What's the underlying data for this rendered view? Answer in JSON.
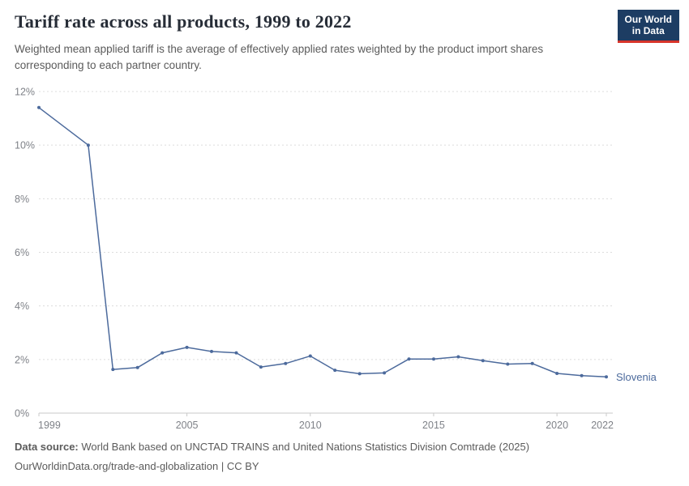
{
  "header": {
    "title": "Tariff rate across all products, 1999 to 2022",
    "subtitle": "Weighted mean applied tariff is the average of effectively applied rates weighted by the product import shares corresponding to each partner country.",
    "logo": {
      "line1": "Our World",
      "line2": "in Data",
      "bg_color": "#1d3d63",
      "accent_color": "#d8352b",
      "text_color": "#ffffff"
    }
  },
  "chart_data": {
    "type": "line",
    "title": "Tariff rate across all products, 1999 to 2022",
    "xlabel": "",
    "ylabel": "",
    "xlim": [
      1999,
      2022
    ],
    "ylim": [
      0,
      12
    ],
    "x_ticks": [
      1999,
      2005,
      2010,
      2015,
      2020,
      2022
    ],
    "y_ticks": [
      0,
      2,
      4,
      6,
      8,
      10,
      12
    ],
    "y_tick_suffix": "%",
    "grid": "horizontal-dashed",
    "legend_position": "end-of-line-label",
    "colors": {
      "gridline": "#dcdcdc",
      "axis_line": "#c8c8c8",
      "tick_label": "#7f8288"
    },
    "series": [
      {
        "name": "Slovenia",
        "color": "#4C6A9C",
        "points": [
          [
            1999,
            11.4
          ],
          [
            2001,
            10.0
          ],
          [
            2002,
            1.63
          ],
          [
            2003,
            1.7
          ],
          [
            2004,
            2.25
          ],
          [
            2005,
            2.45
          ],
          [
            2006,
            2.3
          ],
          [
            2007,
            2.25
          ],
          [
            2008,
            1.72
          ],
          [
            2009,
            1.85
          ],
          [
            2010,
            2.13
          ],
          [
            2011,
            1.6
          ],
          [
            2012,
            1.47
          ],
          [
            2013,
            1.5
          ],
          [
            2014,
            2.02
          ],
          [
            2015,
            2.02
          ],
          [
            2016,
            2.1
          ],
          [
            2017,
            1.96
          ],
          [
            2018,
            1.83
          ],
          [
            2019,
            1.85
          ],
          [
            2020,
            1.48
          ],
          [
            2021,
            1.4
          ],
          [
            2022,
            1.35
          ]
        ]
      }
    ]
  },
  "footer": {
    "source_label": "Data source:",
    "source_text": " World Bank based on UNCTAD TRAINS and United Nations Statistics Division Comtrade (2025)",
    "license_text": "OurWorldinData.org/trade-and-globalization | CC BY"
  }
}
